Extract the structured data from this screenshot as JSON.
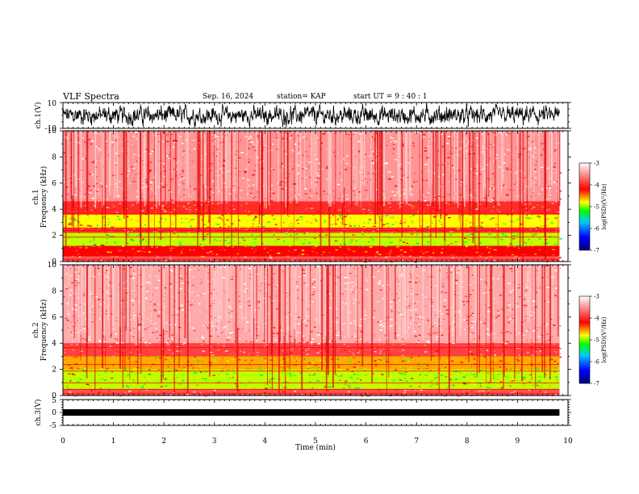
{
  "header": {
    "title": "VLF Spectra",
    "date": "Sep. 16, 2024",
    "station": "station= KAP",
    "start_ut": "start UT =  9 : 40 : 1"
  },
  "chart_data": [
    {
      "id": "ch1-waveform",
      "type": "line",
      "ylabel": "ch.1(V)",
      "ylim": [
        -10,
        10
      ],
      "yticks": [
        -10,
        10
      ],
      "xlim": [
        0,
        10
      ],
      "x_extent_min": 9.83,
      "description_values": "dense noise waveform oscillating roughly between -8 and 8 V"
    },
    {
      "id": "ch1-spectrogram",
      "type": "heatmap",
      "ylabel_line1": "ch.1",
      "ylabel_line2": "Frequency  (kHz)",
      "ylim": [
        0,
        10
      ],
      "yticks": [
        0,
        2,
        4,
        6,
        8,
        10
      ],
      "xlim": [
        0,
        10
      ],
      "colorbar": {
        "label": "log(PSD)(V²/Hz)",
        "range": [
          -7,
          -3
        ],
        "ticks": [
          -7,
          -6,
          -5,
          -4,
          -3
        ]
      },
      "bands": [
        {
          "from": 0,
          "to": 0.4,
          "level": -3.8
        },
        {
          "from": 0.4,
          "to": 1.2,
          "level": -4.2
        },
        {
          "from": 1.2,
          "to": 2.2,
          "level": -4.9
        },
        {
          "from": 2.2,
          "to": 2.6,
          "level": -4.0
        },
        {
          "from": 2.6,
          "to": 3.6,
          "level": -4.8
        },
        {
          "from": 3.6,
          "to": 4.6,
          "level": -4.0
        },
        {
          "from": 4.6,
          "to": 10,
          "level": -3.5
        }
      ]
    },
    {
      "id": "ch2-spectrogram",
      "type": "heatmap",
      "ylabel_line1": "ch.2",
      "ylabel_line2": "Frequency  (kHz)",
      "ylim": [
        0,
        10
      ],
      "yticks": [
        0,
        2,
        4,
        6,
        8,
        10
      ],
      "xlim": [
        0,
        10
      ],
      "colorbar": {
        "label": "log(PSD)(V²/Hz)",
        "range": [
          -7,
          -3
        ],
        "ticks": [
          -7,
          -6,
          -5,
          -4,
          -3
        ]
      },
      "bands": [
        {
          "from": 0,
          "to": 0.5,
          "level": -3.8
        },
        {
          "from": 0.5,
          "to": 2.0,
          "level": -4.9
        },
        {
          "from": 2.0,
          "to": 3.0,
          "level": -4.6
        },
        {
          "from": 3.0,
          "to": 4.0,
          "level": -3.9
        },
        {
          "from": 4.0,
          "to": 10,
          "level": -3.4
        }
      ]
    },
    {
      "id": "ch3-waveform",
      "type": "line",
      "ylabel": "ch.3(V)",
      "ylim": [
        -5,
        5
      ],
      "yticks": [
        -5,
        0,
        5
      ],
      "xlim": [
        0,
        10
      ],
      "x_extent_min": 9.83,
      "description_values": "flat thick trace near 0 V"
    }
  ],
  "x_axis": {
    "label": "Time  (min)",
    "ticks": [
      0,
      1,
      2,
      3,
      4,
      5,
      6,
      7,
      8,
      9,
      10
    ]
  },
  "colors": {
    "colormap": [
      "#000080",
      "#0000ff",
      "#00c8ff",
      "#00ff00",
      "#ffff00",
      "#ff0000",
      "#ffffff"
    ]
  }
}
